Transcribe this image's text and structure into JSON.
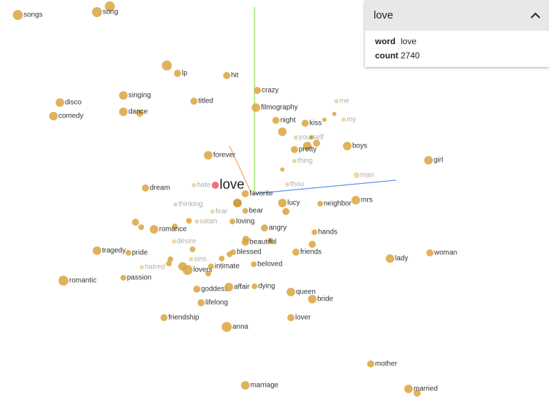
{
  "panel": {
    "title": "love",
    "fields": [
      {
        "key": "word",
        "value": "love"
      },
      {
        "key": "count",
        "value": "2740"
      }
    ]
  },
  "points": [
    {
      "label": "songs"
    },
    {
      "label": "song"
    },
    {
      "label": "lp"
    },
    {
      "label": "hit"
    },
    {
      "label": "crazy"
    },
    {
      "label": "singing"
    },
    {
      "label": "disco"
    },
    {
      "label": "titled"
    },
    {
      "label": "filmography"
    },
    {
      "label": "comedy"
    },
    {
      "label": "dance"
    },
    {
      "label": "night"
    },
    {
      "label": "kiss"
    },
    {
      "label": "me"
    },
    {
      "label": "my"
    },
    {
      "label": "yourself"
    },
    {
      "label": "pretty"
    },
    {
      "label": "boys"
    },
    {
      "label": "girl"
    },
    {
      "label": "forever"
    },
    {
      "label": "thing"
    },
    {
      "label": "man"
    },
    {
      "label": "dream"
    },
    {
      "label": "hate"
    },
    {
      "label": "love"
    },
    {
      "label": "favorite"
    },
    {
      "label": "thou"
    },
    {
      "label": "mrs"
    },
    {
      "label": "lucy"
    },
    {
      "label": "neighbor"
    },
    {
      "label": "thinking"
    },
    {
      "label": "fear"
    },
    {
      "label": "bear"
    },
    {
      "label": "satan"
    },
    {
      "label": "loving"
    },
    {
      "label": "romance"
    },
    {
      "label": "angry"
    },
    {
      "label": "hands"
    },
    {
      "label": "desire"
    },
    {
      "label": "beautiful"
    },
    {
      "label": "tragedy"
    },
    {
      "label": "pride"
    },
    {
      "label": "blessed"
    },
    {
      "label": "friends"
    },
    {
      "label": "lady"
    },
    {
      "label": "woman"
    },
    {
      "label": "sins"
    },
    {
      "label": "hatred"
    },
    {
      "label": "lovers"
    },
    {
      "label": "intimate"
    },
    {
      "label": "beloved"
    },
    {
      "label": "passion"
    },
    {
      "label": "romantic"
    },
    {
      "label": "goddess"
    },
    {
      "label": "affair"
    },
    {
      "label": "dying"
    },
    {
      "label": "queen"
    },
    {
      "label": "bride"
    },
    {
      "label": "lifelong"
    },
    {
      "label": "friendship"
    },
    {
      "label": "lover"
    },
    {
      "label": "anna"
    },
    {
      "label": "mother"
    },
    {
      "label": "marriage"
    },
    {
      "label": "married"
    }
  ]
}
